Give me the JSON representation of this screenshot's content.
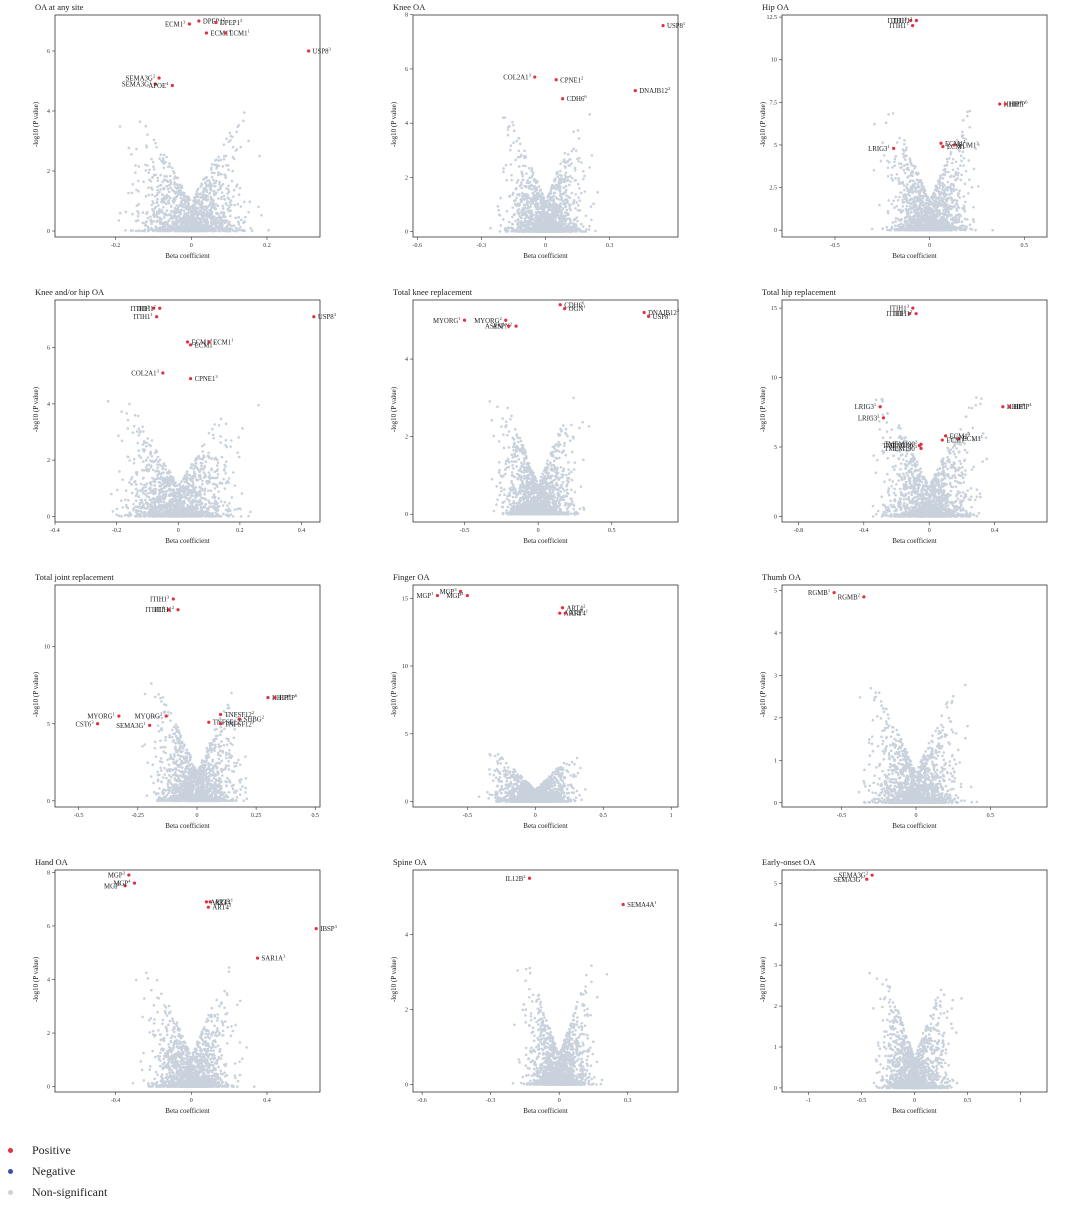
{
  "colors": {
    "positive": "#e0313f",
    "negative": "#3a50a8",
    "nonsig": "#c9d2dc"
  },
  "legend": {
    "positive": "Positive",
    "negative": "Negative",
    "nonsig": "Non-significant"
  },
  "chart_data": [
    {
      "type": "scatter",
      "title": "OA at any site",
      "xlabel": "Beta coefficient",
      "ylabel": "-log10 (P value)",
      "xlim": [
        -0.36,
        0.34
      ],
      "ylim": [
        -0.2,
        7.3
      ],
      "xticks": [
        -0.2,
        0.0,
        0.2
      ],
      "yticks": [
        0,
        2,
        4,
        6
      ],
      "cloud_width": 0.2,
      "points": [
        {
          "x": 0.02,
          "y": 7.0,
          "label": "DPEP1",
          "sup": "2"
        },
        {
          "x": 0.065,
          "y": 6.95,
          "label": "DPEP1",
          "sup": "3"
        },
        {
          "x": -0.005,
          "y": 6.9,
          "label": "ECM1",
          "sup": "3"
        },
        {
          "x": 0.04,
          "y": 6.6,
          "label": "ECM1",
          "sup": "4"
        },
        {
          "x": 0.09,
          "y": 6.6,
          "label": "ECM1",
          "sup": "1"
        },
        {
          "x": 0.31,
          "y": 6.0,
          "label": "USP8",
          "sup": "3"
        },
        {
          "x": -0.085,
          "y": 5.1,
          "label": "SEMA3G",
          "sup": "2"
        },
        {
          "x": -0.095,
          "y": 4.9,
          "label": "SEMA3G",
          "sup": "1"
        },
        {
          "x": -0.05,
          "y": 4.85,
          "label": "APOE",
          "sup": "4"
        }
      ]
    },
    {
      "type": "scatter",
      "title": "Knee OA",
      "xlabel": "Beta coefficient",
      "ylabel": "-log10 (P value)",
      "xlim": [
        -0.62,
        0.62
      ],
      "ylim": [
        -0.2,
        8.1
      ],
      "xticks": [
        -0.6,
        -0.3,
        0.0,
        0.3
      ],
      "yticks": [
        0,
        2,
        4,
        6,
        8
      ],
      "cloud_width": 0.25,
      "points": [
        {
          "x": 0.55,
          "y": 7.6,
          "label": "USP8",
          "sup": "1"
        },
        {
          "x": -0.05,
          "y": 5.7,
          "label": "COL2A1",
          "sup": "3"
        },
        {
          "x": 0.05,
          "y": 5.6,
          "label": "CPNE1",
          "sup": "2"
        },
        {
          "x": 0.42,
          "y": 5.2,
          "label": "DNAJB12",
          "sup": "2"
        },
        {
          "x": 0.08,
          "y": 4.9,
          "label": "CDH6",
          "sup": "6"
        }
      ]
    },
    {
      "type": "scatter",
      "title": "Hip OA",
      "xlabel": "Beta coefficient",
      "ylabel": "-log10 (P value)",
      "xlim": [
        -0.78,
        0.62
      ],
      "ylim": [
        -0.4,
        12.8
      ],
      "xticks": [
        -0.5,
        0.0,
        0.5
      ],
      "yticks": [
        0.0,
        2.5,
        5.0,
        7.5,
        10.0,
        12.5
      ],
      "cloud_width": 0.3,
      "points": [
        {
          "x": -0.1,
          "y": 12.3,
          "label": "ITIH1",
          "sup": "3"
        },
        {
          "x": -0.07,
          "y": 12.3,
          "label": "ITIH1",
          "sup": "2"
        },
        {
          "x": -0.09,
          "y": 12.0,
          "label": "ITIH1",
          "sup": "1"
        },
        {
          "x": 0.37,
          "y": 7.4,
          "label": "HHIP",
          "sup": "4"
        },
        {
          "x": 0.4,
          "y": 7.4,
          "label": "HHIP",
          "sup": "6"
        },
        {
          "x": 0.06,
          "y": 5.1,
          "label": "ECM1",
          "sup": "4"
        },
        {
          "x": 0.13,
          "y": 5.0,
          "label": "ECM1",
          "sup": "3"
        },
        {
          "x": 0.07,
          "y": 4.9,
          "label": "ECM1",
          "sup": "1"
        },
        {
          "x": -0.19,
          "y": 4.8,
          "label": "LRIG3",
          "sup": "1"
        }
      ]
    },
    {
      "type": "scatter",
      "title": "Knee and/or hip OA",
      "xlabel": "Beta coefficient",
      "ylabel": "-log10 (P value)",
      "xlim": [
        -0.4,
        0.46
      ],
      "ylim": [
        -0.2,
        7.8
      ],
      "xticks": [
        -0.4,
        -0.2,
        0.0,
        0.2,
        0.4
      ],
      "yticks": [
        0,
        2,
        4,
        6
      ],
      "cloud_width": 0.25,
      "points": [
        {
          "x": -0.08,
          "y": 7.4,
          "label": "ITIH1",
          "sup": "3"
        },
        {
          "x": -0.06,
          "y": 7.4,
          "label": "ITIH1",
          "sup": "2"
        },
        {
          "x": -0.07,
          "y": 7.1,
          "label": "ITIH1",
          "sup": "1"
        },
        {
          "x": 0.44,
          "y": 7.1,
          "label": "USP8",
          "sup": "3"
        },
        {
          "x": 0.03,
          "y": 6.2,
          "label": "ECM1",
          "sup": "4"
        },
        {
          "x": 0.1,
          "y": 6.2,
          "label": "ECM1",
          "sup": "1"
        },
        {
          "x": 0.04,
          "y": 6.1,
          "label": "ECM1",
          "sup": "3"
        },
        {
          "x": -0.05,
          "y": 5.1,
          "label": "COL2A1",
          "sup": "3"
        },
        {
          "x": 0.04,
          "y": 4.9,
          "label": "CPNE1",
          "sup": "3"
        }
      ]
    },
    {
      "type": "scatter",
      "title": "Total knee replacement",
      "xlabel": "Beta coefficient",
      "ylabel": "-log10 (P value)",
      "xlim": [
        -0.85,
        0.95
      ],
      "ylim": [
        -0.2,
        5.6
      ],
      "xticks": [
        -0.5,
        0.0,
        0.5
      ],
      "yticks": [
        0,
        2,
        4
      ],
      "cloud_width": 0.35,
      "points": [
        {
          "x": 0.15,
          "y": 5.4,
          "label": "CDH6",
          "sup": "6"
        },
        {
          "x": 0.18,
          "y": 5.3,
          "label": "OGN",
          "sup": "1"
        },
        {
          "x": 0.72,
          "y": 5.2,
          "label": "DNAJB12",
          "sup": "2"
        },
        {
          "x": 0.75,
          "y": 5.1,
          "label": "USP8",
          "sup": "1"
        },
        {
          "x": -0.5,
          "y": 5.0,
          "label": "MYORG",
          "sup": "1"
        },
        {
          "x": -0.22,
          "y": 5.0,
          "label": "MYORG",
          "sup": "2"
        },
        {
          "x": -0.15,
          "y": 4.85,
          "label": "ASPN",
          "sup": "2"
        },
        {
          "x": -0.2,
          "y": 4.85,
          "label": "ASPN",
          "sup": "1"
        }
      ]
    },
    {
      "type": "scatter",
      "title": "Total hip replacement",
      "xlabel": "Beta coefficient",
      "ylabel": "-log10 (P value)",
      "xlim": [
        -0.9,
        0.72
      ],
      "ylim": [
        -0.4,
        15.8
      ],
      "xticks": [
        -0.8,
        -0.4,
        0.0,
        0.4
      ],
      "yticks": [
        0,
        5,
        10,
        15
      ],
      "cloud_width": 0.4,
      "points": [
        {
          "x": -0.1,
          "y": 15.0,
          "label": "ITIH1",
          "sup": "3"
        },
        {
          "x": -0.12,
          "y": 14.6,
          "label": "ITIH1",
          "sup": "1"
        },
        {
          "x": -0.08,
          "y": 14.6,
          "label": "ITIH1",
          "sup": "2"
        },
        {
          "x": -0.3,
          "y": 7.9,
          "label": "LRIG3",
          "sup": "1"
        },
        {
          "x": -0.28,
          "y": 7.1,
          "label": "LRIG3",
          "sup": "2"
        },
        {
          "x": 0.45,
          "y": 7.9,
          "label": "HHIP",
          "sup": "6"
        },
        {
          "x": 0.49,
          "y": 7.9,
          "label": "HHIP",
          "sup": "4"
        },
        {
          "x": 0.1,
          "y": 5.8,
          "label": "ECM1",
          "sup": "3"
        },
        {
          "x": 0.18,
          "y": 5.6,
          "label": "ECM1",
          "sup": "1"
        },
        {
          "x": 0.08,
          "y": 5.5,
          "label": "ECM1",
          "sup": "4"
        },
        {
          "x": -0.05,
          "y": 5.2,
          "label": "TMEM190",
          "sup": "2"
        },
        {
          "x": -0.06,
          "y": 5.1,
          "label": "TMEM190",
          "sup": "1"
        },
        {
          "x": -0.05,
          "y": 4.9,
          "label": "TMEM190",
          "sup": "3"
        }
      ]
    },
    {
      "type": "scatter",
      "title": "Total joint replacement",
      "xlabel": "Beta coefficient",
      "ylabel": "-log10 (P value)",
      "xlim": [
        -0.6,
        0.52
      ],
      "ylim": [
        -0.4,
        14.2
      ],
      "xticks": [
        -0.5,
        -0.25,
        0.0,
        0.25,
        0.5
      ],
      "yticks": [
        0,
        5,
        10
      ],
      "cloud_width": 0.25,
      "points": [
        {
          "x": -0.1,
          "y": 13.1,
          "label": "ITIH1",
          "sup": "3"
        },
        {
          "x": -0.12,
          "y": 12.4,
          "label": "ITIH1",
          "sup": "1"
        },
        {
          "x": -0.08,
          "y": 12.4,
          "label": "ITIH1",
          "sup": "2"
        },
        {
          "x": 0.3,
          "y": 6.7,
          "label": "HHIP",
          "sup": "4"
        },
        {
          "x": 0.33,
          "y": 6.7,
          "label": "HHIP",
          "sup": "6"
        },
        {
          "x": -0.33,
          "y": 5.5,
          "label": "MYORG",
          "sup": "1"
        },
        {
          "x": -0.13,
          "y": 5.5,
          "label": "MYORG",
          "sup": "2"
        },
        {
          "x": 0.1,
          "y": 5.6,
          "label": "TNFSF12",
          "sup": "2"
        },
        {
          "x": 0.18,
          "y": 5.3,
          "label": "SHBG",
          "sup": "2"
        },
        {
          "x": -0.42,
          "y": 5.0,
          "label": "CST6",
          "sup": "3"
        },
        {
          "x": -0.2,
          "y": 4.9,
          "label": "SEMA3G",
          "sup": "1"
        },
        {
          "x": 0.05,
          "y": 5.1,
          "label": "TNFSF12",
          "sup": "1"
        },
        {
          "x": 0.1,
          "y": 5.0,
          "label": "TNFSF12",
          "sup": "3"
        }
      ]
    },
    {
      "type": "scatter",
      "title": "Finger OA",
      "xlabel": "Beta coefficient",
      "ylabel": "-log10 (P value)",
      "xlim": [
        -0.9,
        1.05
      ],
      "ylim": [
        -0.4,
        16.2
      ],
      "xticks": [
        -0.5,
        0.0,
        0.5,
        1.0
      ],
      "yticks": [
        0,
        5,
        10,
        15
      ],
      "cloud_width": 0.4,
      "cloud_height": 3.5,
      "points": [
        {
          "x": -0.55,
          "y": 15.5,
          "label": "MGP",
          "sup": "3"
        },
        {
          "x": -0.72,
          "y": 15.2,
          "label": "MGP",
          "sup": "1"
        },
        {
          "x": -0.5,
          "y": 15.2,
          "label": "MGP",
          "sup": "4"
        },
        {
          "x": 0.2,
          "y": 14.3,
          "label": "ART4",
          "sup": "2"
        },
        {
          "x": 0.18,
          "y": 13.9,
          "label": "ART4",
          "sup": "3"
        },
        {
          "x": 0.22,
          "y": 13.9,
          "label": "ART4",
          "sup": "1"
        }
      ]
    },
    {
      "type": "scatter",
      "title": "Thumb OA",
      "xlabel": "Beta coefficient",
      "ylabel": "-log10 (P value)",
      "xlim": [
        -0.9,
        0.88
      ],
      "ylim": [
        -0.1,
        5.2
      ],
      "xticks": [
        -0.5,
        0.0,
        0.5
      ],
      "yticks": [
        0,
        1,
        2,
        3,
        4,
        5
      ],
      "cloud_width": 0.4,
      "points": [
        {
          "x": -0.55,
          "y": 4.95,
          "label": "RGMB",
          "sup": "1"
        },
        {
          "x": -0.35,
          "y": 4.85,
          "label": "RGMB",
          "sup": "2"
        }
      ]
    },
    {
      "type": "scatter",
      "title": "Hand OA",
      "xlabel": "Beta coefficient",
      "ylabel": "-log10 (P value)",
      "xlim": [
        -0.72,
        0.68
      ],
      "ylim": [
        -0.2,
        8.2
      ],
      "xticks": [
        -0.4,
        0.0,
        0.4
      ],
      "yticks": [
        0,
        2,
        4,
        6,
        8
      ],
      "cloud_width": 0.3,
      "points": [
        {
          "x": -0.33,
          "y": 7.9,
          "label": "MGP",
          "sup": "3"
        },
        {
          "x": -0.35,
          "y": 7.5,
          "label": "MGP",
          "sup": "1"
        },
        {
          "x": -0.3,
          "y": 7.6,
          "label": "MGP",
          "sup": "4"
        },
        {
          "x": 0.08,
          "y": 6.9,
          "label": "ART4",
          "sup": "2"
        },
        {
          "x": 0.1,
          "y": 6.9,
          "label": "ART4",
          "sup": "1"
        },
        {
          "x": 0.09,
          "y": 6.7,
          "label": "ART4",
          "sup": "3"
        },
        {
          "x": 0.66,
          "y": 5.9,
          "label": "IBSP",
          "sup": "3"
        },
        {
          "x": 0.35,
          "y": 4.8,
          "label": "SAR1A",
          "sup": "3"
        }
      ]
    },
    {
      "type": "scatter",
      "title": "Spine OA",
      "xlabel": "Beta coefficient",
      "ylabel": "-log10 (P value)",
      "xlim": [
        -0.64,
        0.52
      ],
      "ylim": [
        -0.2,
        5.8
      ],
      "xticks": [
        -0.6,
        -0.3,
        0.0,
        0.3
      ],
      "yticks": [
        0,
        2,
        4
      ],
      "cloud_width": 0.2,
      "points": [
        {
          "x": -0.13,
          "y": 5.5,
          "label": "IL12B",
          "sup": "2"
        },
        {
          "x": 0.28,
          "y": 4.8,
          "label": "SEMA4A",
          "sup": "1"
        }
      ]
    },
    {
      "type": "scatter",
      "title": "Early-onset OA",
      "xlabel": "Beta coefficient",
      "ylabel": "-log10 (P value)",
      "xlim": [
        -1.25,
        1.25
      ],
      "ylim": [
        -0.1,
        5.4
      ],
      "xticks": [
        -1.0,
        -0.5,
        0.0,
        0.5,
        1.0
      ],
      "yticks": [
        0,
        1,
        2,
        3,
        4,
        5
      ],
      "cloud_width": 0.45,
      "points": [
        {
          "x": -0.45,
          "y": 5.1,
          "label": "SEMA3G",
          "sup": "1"
        },
        {
          "x": -0.4,
          "y": 5.2,
          "label": "SEMA3G",
          "sup": "2"
        }
      ]
    }
  ]
}
